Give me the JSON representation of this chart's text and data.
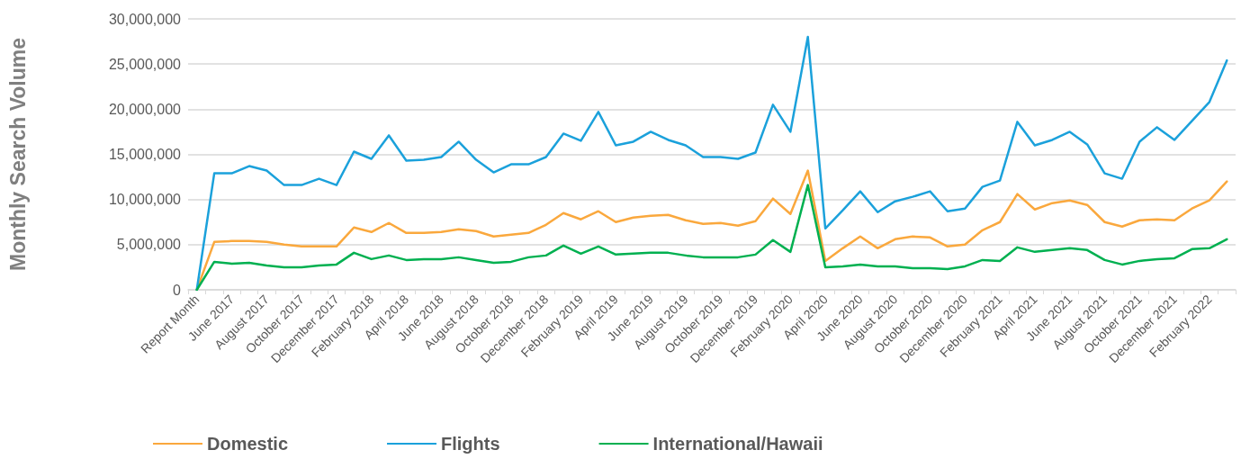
{
  "chart_data": {
    "type": "line",
    "ylabel": "Monthly Search Volume",
    "categories": [
      "Report Month",
      null,
      "June 2017",
      null,
      "August 2017",
      null,
      "October 2017",
      null,
      "December 2017",
      null,
      "February 2018",
      null,
      "April 2018",
      null,
      "June 2018",
      null,
      "August 2018",
      null,
      "October 2018",
      null,
      "December 2018",
      null,
      "February 2019",
      null,
      "April 2019",
      null,
      "June 2019",
      null,
      "August 2019",
      null,
      "October 2019",
      null,
      "December 2019",
      null,
      "February 2020",
      null,
      "April 2020",
      null,
      "June 2020",
      null,
      "August 2020",
      null,
      "October 2020",
      null,
      "December 2020",
      null,
      "February 2021",
      null,
      "April 2021",
      null,
      "June 2021",
      null,
      "August 2021",
      null,
      "October 2021",
      null,
      "December 2021",
      null,
      "February 2022",
      null
    ],
    "series": [
      {
        "name": "Domestic",
        "color": "#faa83d",
        "values": [
          0,
          5300000,
          5400000,
          5400000,
          5300000,
          5000000,
          4800000,
          4800000,
          4800000,
          6900000,
          6400000,
          7400000,
          6300000,
          6300000,
          6400000,
          6700000,
          6500000,
          5900000,
          6100000,
          6300000,
          7200000,
          8500000,
          7800000,
          8700000,
          7500000,
          8000000,
          8200000,
          8300000,
          7700000,
          7300000,
          7400000,
          7100000,
          7600000,
          10100000,
          8400000,
          13200000,
          3200000,
          4600000,
          5900000,
          4600000,
          5600000,
          5900000,
          5800000,
          4800000,
          5000000,
          6600000,
          7500000,
          10600000,
          8900000,
          9600000,
          9900000,
          9400000,
          7500000,
          7000000,
          7700000,
          7800000,
          7700000,
          9000000,
          9900000,
          12000000
        ]
      },
      {
        "name": "Flights",
        "color": "#1ba1db",
        "values": [
          0,
          12900000,
          12900000,
          13700000,
          13200000,
          11600000,
          11600000,
          12300000,
          11600000,
          15300000,
          14500000,
          17100000,
          14300000,
          14400000,
          14700000,
          16400000,
          14400000,
          13000000,
          13900000,
          13900000,
          14700000,
          17300000,
          16500000,
          19700000,
          16000000,
          16400000,
          17500000,
          16600000,
          16000000,
          14700000,
          14700000,
          14500000,
          15200000,
          20500000,
          17500000,
          28000000,
          6800000,
          8800000,
          10900000,
          8600000,
          9800000,
          10300000,
          10900000,
          8700000,
          9000000,
          11400000,
          12100000,
          18600000,
          16000000,
          16600000,
          17500000,
          16100000,
          12900000,
          12300000,
          16400000,
          18000000,
          16600000,
          18700000,
          20800000,
          25400000
        ]
      },
      {
        "name": "International/Hawaii",
        "color": "#00b050",
        "values": [
          0,
          3100000,
          2900000,
          3000000,
          2700000,
          2500000,
          2500000,
          2700000,
          2800000,
          4100000,
          3400000,
          3800000,
          3300000,
          3400000,
          3400000,
          3600000,
          3300000,
          3000000,
          3100000,
          3600000,
          3800000,
          4900000,
          4000000,
          4800000,
          3900000,
          4000000,
          4100000,
          4100000,
          3800000,
          3600000,
          3600000,
          3600000,
          3900000,
          5500000,
          4200000,
          11600000,
          2500000,
          2600000,
          2800000,
          2600000,
          2600000,
          2400000,
          2400000,
          2300000,
          2600000,
          3300000,
          3200000,
          4700000,
          4200000,
          4400000,
          4600000,
          4400000,
          3300000,
          2800000,
          3200000,
          3400000,
          3500000,
          4500000,
          4600000,
          5600000
        ]
      }
    ],
    "ylim": [
      0,
      30000000
    ],
    "yticks": [
      {
        "value": 0,
        "label": "0"
      },
      {
        "value": 5000000,
        "label": "5,000,000"
      },
      {
        "value": 10000000,
        "label": "10,000,000"
      },
      {
        "value": 15000000,
        "label": "15,000,000"
      },
      {
        "value": 20000000,
        "label": "20,000,000"
      },
      {
        "value": 25000000,
        "label": "25,000,000"
      },
      {
        "value": 30000000,
        "label": "30,000,000"
      }
    ],
    "grid": "y",
    "legend": "bottom",
    "marker": "none",
    "line_style": "solid"
  }
}
